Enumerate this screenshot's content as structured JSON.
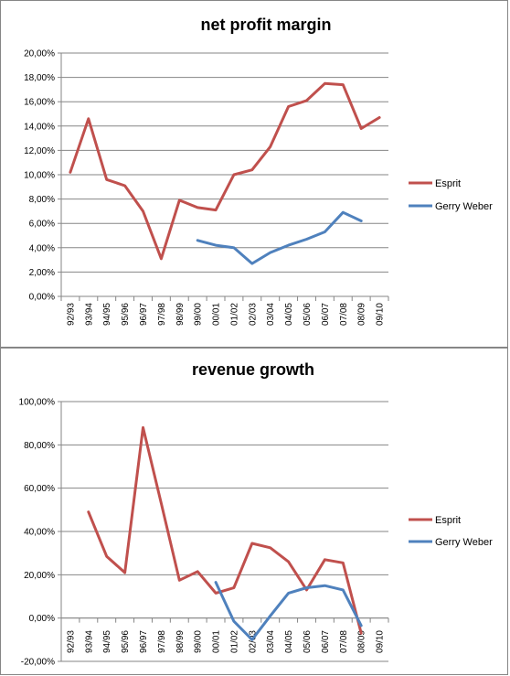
{
  "chart_data": [
    {
      "type": "line",
      "title": "net profit margin",
      "xlabel": "",
      "ylabel": "",
      "categories": [
        "92/93",
        "93/94",
        "94/95",
        "95/96",
        "96/97",
        "97/98",
        "98/99",
        "99/00",
        "00/01",
        "01/02",
        "02/03",
        "03/04",
        "04/05",
        "05/06",
        "06/07",
        "07/08",
        "08/09",
        "09/10"
      ],
      "yticks": [
        "0,00%",
        "2,00%",
        "4,00%",
        "6,00%",
        "8,00%",
        "10,00%",
        "12,00%",
        "14,00%",
        "16,00%",
        "18,00%",
        "20,00%"
      ],
      "ylim": [
        0,
        20
      ],
      "grid": true,
      "legend": "right",
      "series": [
        {
          "name": "Esprit",
          "color": "#C0504D",
          "values": [
            10.2,
            14.6,
            9.6,
            9.1,
            7.0,
            3.1,
            7.9,
            7.3,
            7.1,
            10.0,
            10.4,
            12.3,
            15.6,
            16.1,
            17.5,
            17.4,
            13.8,
            14.7
          ]
        },
        {
          "name": "Gerry Weber",
          "color": "#4F81BD",
          "values": [
            null,
            null,
            null,
            null,
            null,
            null,
            null,
            4.6,
            4.2,
            4.0,
            2.7,
            3.6,
            4.2,
            4.7,
            5.3,
            6.9,
            6.2,
            null
          ]
        }
      ]
    },
    {
      "type": "line",
      "title": "revenue growth",
      "xlabel": "",
      "ylabel": "",
      "categories": [
        "92/93",
        "93/94",
        "94/95",
        "95/96",
        "96/97",
        "97/98",
        "98/99",
        "99/00",
        "00/01",
        "01/02",
        "02/03",
        "03/04",
        "04/05",
        "05/06",
        "06/07",
        "07/08",
        "08/09",
        "09/10"
      ],
      "yticks": [
        "-20,00%",
        "0,00%",
        "20,00%",
        "40,00%",
        "60,00%",
        "80,00%",
        "100,00%"
      ],
      "ylim": [
        -20,
        100
      ],
      "grid": true,
      "legend": "right",
      "series": [
        {
          "name": "Esprit",
          "color": "#C0504D",
          "values": [
            null,
            49.0,
            28.5,
            21.0,
            88.0,
            53.0,
            17.5,
            21.5,
            11.5,
            14.0,
            34.5,
            32.5,
            26.0,
            13.0,
            27.0,
            25.5,
            -7.0,
            null
          ]
        },
        {
          "name": "Gerry Weber",
          "color": "#4F81BD",
          "values": [
            null,
            null,
            null,
            null,
            null,
            null,
            null,
            null,
            16.5,
            -1.5,
            -10.0,
            1.0,
            11.5,
            14.0,
            15.0,
            13.0,
            -3.5,
            null
          ]
        }
      ]
    }
  ]
}
